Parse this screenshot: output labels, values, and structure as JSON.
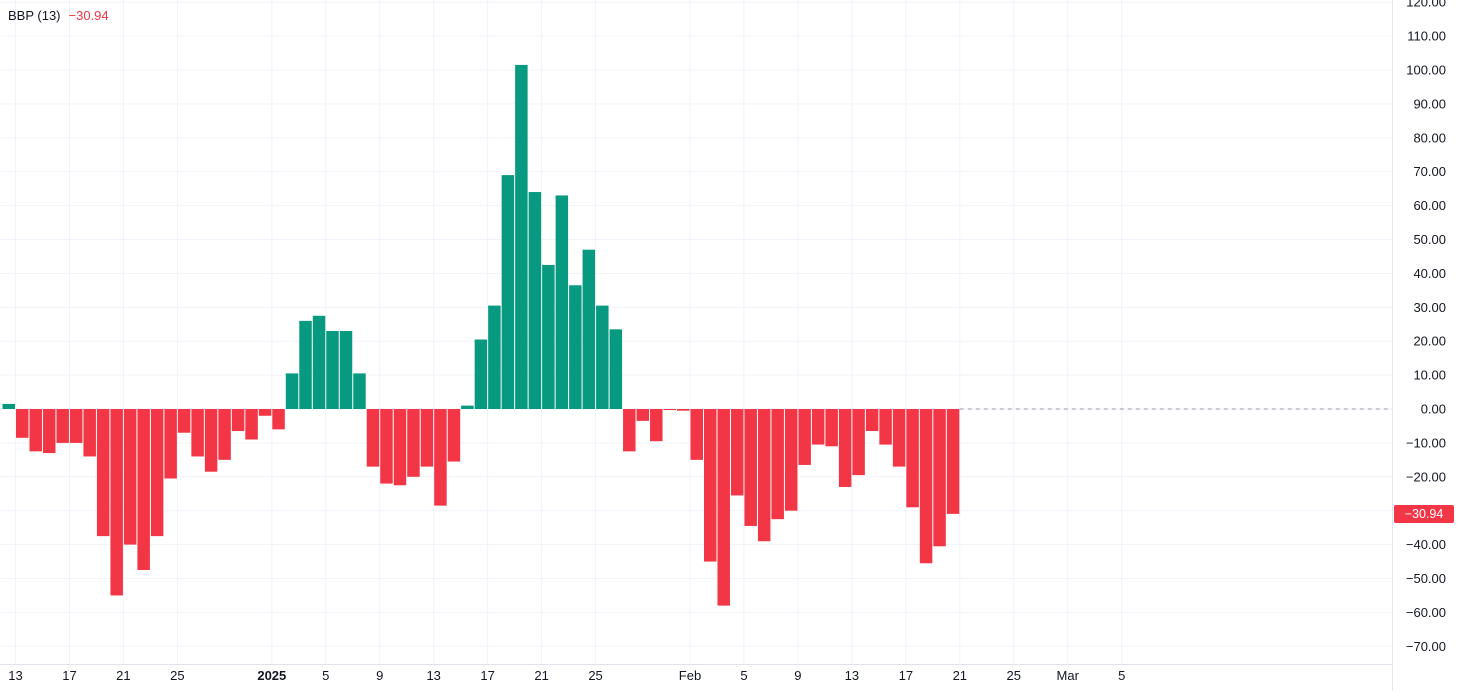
{
  "legend": {
    "name": "BBP (13)",
    "value": "−30.94"
  },
  "last_value_label": "−30.94",
  "colors": {
    "positive": "#089981",
    "negative": "#f23645",
    "grid": "#f0f3fa",
    "text": "#131722",
    "zero_line": "#9598a1"
  },
  "chart_data": {
    "type": "bar",
    "title": "BBP (13)",
    "ylim": [
      -73,
      120
    ],
    "y_ticks": [
      120,
      110,
      100,
      90,
      80,
      70,
      60,
      50,
      40,
      30,
      20,
      10,
      0,
      -10,
      -20,
      -30,
      -40,
      -50,
      -60,
      -70
    ],
    "y_tick_labels": [
      "120.00",
      "110.00",
      "100.00",
      "90.00",
      "80.00",
      "70.00",
      "60.00",
      "50.00",
      "40.00",
      "30.00",
      "20.00",
      "10.00",
      "0.00",
      "−10.00",
      "−20.00",
      "−30.00",
      "−40.00",
      "−50.00",
      "−60.00",
      "−70.00"
    ],
    "x_tick_labels": [
      {
        "label": "13",
        "x": "2024-12-13",
        "bold": false
      },
      {
        "label": "17",
        "x": "2024-12-17",
        "bold": false
      },
      {
        "label": "21",
        "x": "2024-12-21",
        "bold": false
      },
      {
        "label": "25",
        "x": "2024-12-25",
        "bold": false
      },
      {
        "label": "2025",
        "x": "2025-01-01",
        "bold": true
      },
      {
        "label": "5",
        "x": "2025-01-05",
        "bold": false
      },
      {
        "label": "9",
        "x": "2025-01-09",
        "bold": false
      },
      {
        "label": "13",
        "x": "2025-01-13",
        "bold": false
      },
      {
        "label": "17",
        "x": "2025-01-17",
        "bold": false
      },
      {
        "label": "21",
        "x": "2025-01-21",
        "bold": false
      },
      {
        "label": "25",
        "x": "2025-01-25",
        "bold": false
      },
      {
        "label": "Feb",
        "x": "2025-02-01",
        "bold": false
      },
      {
        "label": "5",
        "x": "2025-02-05",
        "bold": false
      },
      {
        "label": "9",
        "x": "2025-02-09",
        "bold": false
      },
      {
        "label": "13",
        "x": "2025-02-13",
        "bold": false
      },
      {
        "label": "17",
        "x": "2025-02-17",
        "bold": false
      },
      {
        "label": "21",
        "x": "2025-02-21",
        "bold": false
      },
      {
        "label": "25",
        "x": "2025-02-25",
        "bold": false
      },
      {
        "label": "Mar",
        "x": "2025-03-01",
        "bold": false
      },
      {
        "label": "5",
        "x": "2025-03-05",
        "bold": false
      }
    ],
    "bars": [
      {
        "start": "2024-12-12",
        "end": "2024-12-13",
        "value": 1.5
      },
      {
        "start": "2024-12-13",
        "end": "2024-12-14",
        "value": -8.5
      },
      {
        "start": "2024-12-14",
        "end": "2024-12-15",
        "value": -12.5
      },
      {
        "start": "2024-12-15",
        "end": "2024-12-16",
        "value": -13
      },
      {
        "start": "2024-12-16",
        "end": "2024-12-17",
        "value": -10
      },
      {
        "start": "2024-12-17",
        "end": "2024-12-18",
        "value": -10
      },
      {
        "start": "2024-12-18",
        "end": "2024-12-19",
        "value": -14
      },
      {
        "start": "2024-12-19",
        "end": "2024-12-20",
        "value": -37.5
      },
      {
        "start": "2024-12-20",
        "end": "2024-12-21",
        "value": -55
      },
      {
        "start": "2024-12-21",
        "end": "2024-12-22",
        "value": -40
      },
      {
        "start": "2024-12-22",
        "end": "2024-12-23",
        "value": -47.5
      },
      {
        "start": "2024-12-23",
        "end": "2024-12-24",
        "value": -37.5
      },
      {
        "start": "2024-12-24",
        "end": "2024-12-25",
        "value": -20.5
      },
      {
        "start": "2024-12-25",
        "end": "2024-12-26",
        "value": -7
      },
      {
        "start": "2024-12-26",
        "end": "2024-12-27",
        "value": -14
      },
      {
        "start": "2024-12-27",
        "end": "2024-12-28",
        "value": -18.5
      },
      {
        "start": "2024-12-28",
        "end": "2024-12-29",
        "value": -15
      },
      {
        "start": "2024-12-29",
        "end": "2024-12-30",
        "value": -6.5
      },
      {
        "start": "2024-12-30",
        "end": "2024-12-31",
        "value": -9
      },
      {
        "start": "2024-12-31",
        "end": "2025-01-01",
        "value": -2
      },
      {
        "start": "2025-01-01",
        "end": "2025-01-02",
        "value": -6
      },
      {
        "start": "2025-01-02",
        "end": "2025-01-03",
        "value": 10.5
      },
      {
        "start": "2025-01-03",
        "end": "2025-01-04",
        "value": 26
      },
      {
        "start": "2025-01-04",
        "end": "2025-01-05",
        "value": 27.5
      },
      {
        "start": "2025-01-05",
        "end": "2025-01-06",
        "value": 23
      },
      {
        "start": "2025-01-06",
        "end": "2025-01-07",
        "value": 23
      },
      {
        "start": "2025-01-07",
        "end": "2025-01-08",
        "value": 10.5
      },
      {
        "start": "2025-01-08",
        "end": "2025-01-09",
        "value": -17
      },
      {
        "start": "2025-01-09",
        "end": "2025-01-10",
        "value": -22
      },
      {
        "start": "2025-01-10",
        "end": "2025-01-11",
        "value": -22.5
      },
      {
        "start": "2025-01-11",
        "end": "2025-01-12",
        "value": -20
      },
      {
        "start": "2025-01-12",
        "end": "2025-01-13",
        "value": -17
      },
      {
        "start": "2025-01-13",
        "end": "2025-01-14",
        "value": -28.5
      },
      {
        "start": "2025-01-14",
        "end": "2025-01-15",
        "value": -15.5
      },
      {
        "start": "2025-01-15",
        "end": "2025-01-16",
        "value": 1
      },
      {
        "start": "2025-01-16",
        "end": "2025-01-17",
        "value": 20.5
      },
      {
        "start": "2025-01-17",
        "end": "2025-01-18",
        "value": 30.5
      },
      {
        "start": "2025-01-18",
        "end": "2025-01-19",
        "value": 69
      },
      {
        "start": "2025-01-19",
        "end": "2025-01-20",
        "value": 101.5
      },
      {
        "start": "2025-01-20",
        "end": "2025-01-21",
        "value": 64
      },
      {
        "start": "2025-01-21",
        "end": "2025-01-22",
        "value": 42.5
      },
      {
        "start": "2025-01-22",
        "end": "2025-01-23",
        "value": 63
      },
      {
        "start": "2025-01-23",
        "end": "2025-01-24",
        "value": 36.5
      },
      {
        "start": "2025-01-24",
        "end": "2025-01-25",
        "value": 47
      },
      {
        "start": "2025-01-25",
        "end": "2025-01-26",
        "value": 30.5
      },
      {
        "start": "2025-01-26",
        "end": "2025-01-27",
        "value": 23.5
      },
      {
        "start": "2025-01-27",
        "end": "2025-01-28",
        "value": -12.5
      },
      {
        "start": "2025-01-28",
        "end": "2025-01-29",
        "value": -3.5
      },
      {
        "start": "2025-01-29",
        "end": "2025-01-30",
        "value": -9.5
      },
      {
        "start": "2025-01-30",
        "end": "2025-01-31",
        "value": -0.3
      },
      {
        "start": "2025-01-31",
        "end": "2025-02-01",
        "value": -0.5
      },
      {
        "start": "2025-02-01",
        "end": "2025-02-02",
        "value": -15
      },
      {
        "start": "2025-02-02",
        "end": "2025-02-03",
        "value": -45
      },
      {
        "start": "2025-02-03",
        "end": "2025-02-04",
        "value": -58
      },
      {
        "start": "2025-02-04",
        "end": "2025-02-05",
        "value": -25.5
      },
      {
        "start": "2025-02-05",
        "end": "2025-02-06",
        "value": -34.5
      },
      {
        "start": "2025-02-06",
        "end": "2025-02-07",
        "value": -39
      },
      {
        "start": "2025-02-07",
        "end": "2025-02-08",
        "value": -32.5
      },
      {
        "start": "2025-02-08",
        "end": "2025-02-09",
        "value": -30
      },
      {
        "start": "2025-02-09",
        "end": "2025-02-10",
        "value": -16.5
      },
      {
        "start": "2025-02-10",
        "end": "2025-02-11",
        "value": -10.5
      },
      {
        "start": "2025-02-11",
        "end": "2025-02-12",
        "value": -11
      },
      {
        "start": "2025-02-12",
        "end": "2025-02-13",
        "value": -23
      },
      {
        "start": "2025-02-13",
        "end": "2025-02-14",
        "value": -19.5
      },
      {
        "start": "2025-02-14",
        "end": "2025-02-15",
        "value": -6.5
      },
      {
        "start": "2025-02-15",
        "end": "2025-02-16",
        "value": -10.5
      },
      {
        "start": "2025-02-16",
        "end": "2025-02-17",
        "value": -17
      },
      {
        "start": "2025-02-17",
        "end": "2025-02-18",
        "value": -29
      },
      {
        "start": "2025-02-18",
        "end": "2025-02-19",
        "value": -45.5
      },
      {
        "start": "2025-02-19",
        "end": "2025-02-20",
        "value": -40.5
      },
      {
        "start": "2025-02-20",
        "end": "2025-02-21",
        "value": -30.94
      }
    ],
    "last_value": -30.94
  }
}
